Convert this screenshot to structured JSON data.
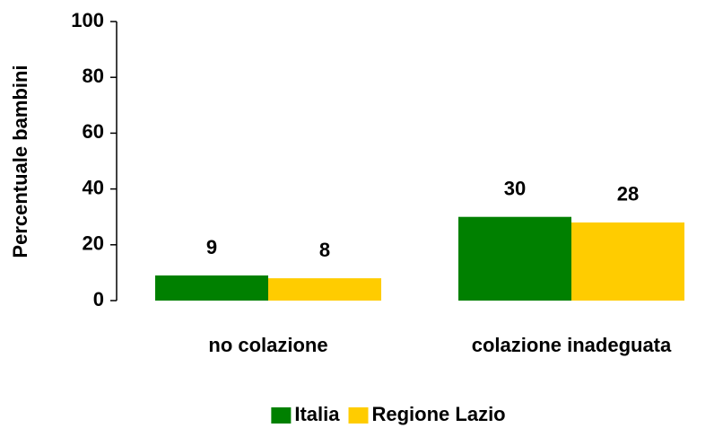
{
  "chart_data": {
    "type": "bar",
    "y_label": "Percentuale bambini",
    "categories": [
      "no colazione",
      "colazione inadeguata"
    ],
    "series": [
      {
        "name": "Italia",
        "color": "#008000",
        "values": [
          9,
          30
        ]
      },
      {
        "name": "Regione Lazio",
        "color": "#ffcc00",
        "values": [
          8,
          28
        ]
      }
    ],
    "ylim": [
      0,
      100
    ],
    "yticks": [
      0,
      20,
      40,
      60,
      80,
      100
    ],
    "grid": false,
    "legend": "bottom"
  }
}
